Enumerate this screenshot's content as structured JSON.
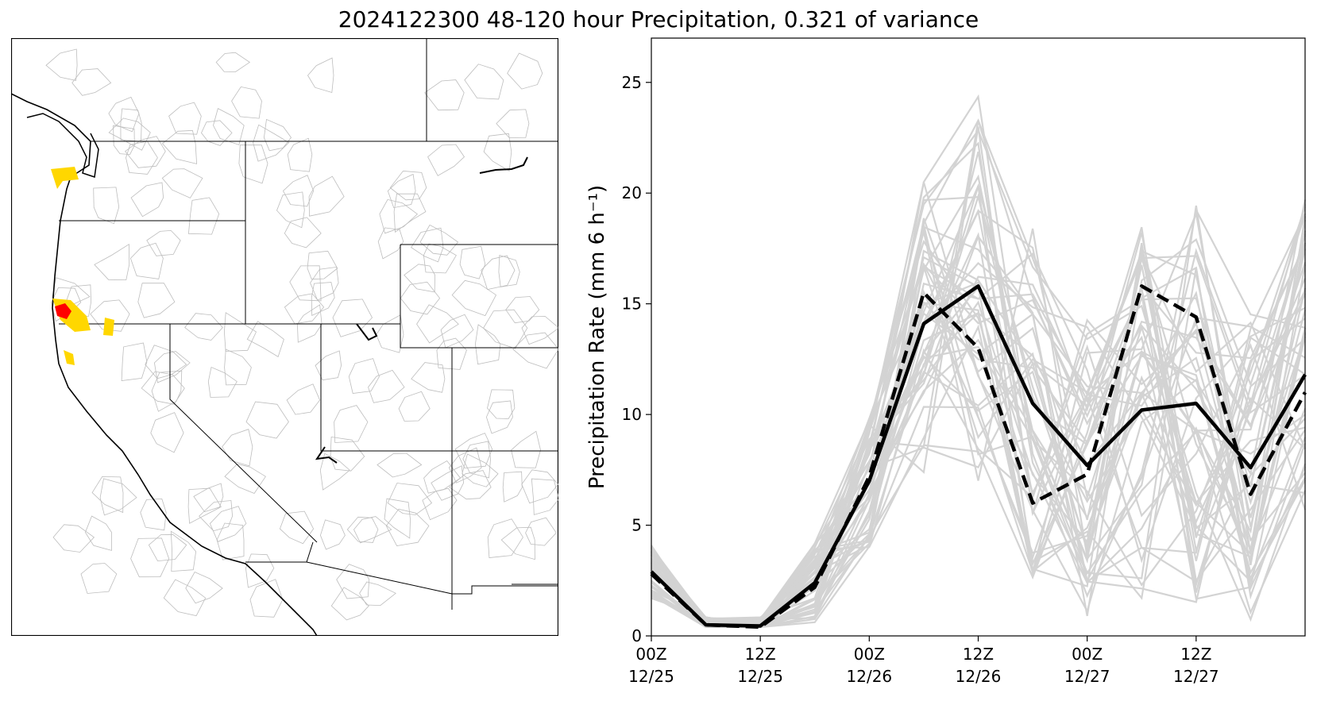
{
  "title": "2024122300 48-120 hour Precipitation, 0.321 of variance",
  "map": {
    "colors": {
      "border": "#000000",
      "basin": "#bdbdbd",
      "highlight_yellow": "#ffd700",
      "highlight_red": "#ff0000"
    }
  },
  "chart_data": {
    "type": "line",
    "title": "2024122300 48-120 hour Precipitation, 0.321 of variance",
    "xlabel": "",
    "ylabel": "Precipitation Rate (mm 6 h⁻¹)",
    "ylim": [
      0,
      27
    ],
    "xlim": [
      0,
      18
    ],
    "yticks": [
      "0",
      "5",
      "10",
      "15",
      "20",
      "25"
    ],
    "xticks": [
      {
        "x": 0,
        "line1": "00Z",
        "line2": "12/25"
      },
      {
        "x": 3,
        "line1": "12Z",
        "line2": "12/25"
      },
      {
        "x": 6,
        "line1": "00Z",
        "line2": "12/26"
      },
      {
        "x": 9,
        "line1": "12Z",
        "line2": "12/26"
      },
      {
        "x": 12,
        "line1": "00Z",
        "line2": "12/27"
      },
      {
        "x": 15,
        "line1": "12Z",
        "line2": "12/27"
      }
    ],
    "grid": false,
    "x": [
      0,
      1.5,
      3,
      4.5,
      6,
      7.5,
      9,
      10.5,
      12,
      13.5,
      15,
      16.5,
      18
    ],
    "series": [
      {
        "style": "solid-black",
        "values": [
          2.9,
          0.5,
          0.45,
          2.4,
          7.0,
          14.1,
          15.8,
          10.5,
          7.7,
          10.2,
          10.5,
          7.6,
          11.8
        ]
      },
      {
        "style": "dashed-black",
        "values": [
          2.8,
          0.5,
          0.4,
          2.2,
          7.2,
          15.5,
          13.0,
          6.0,
          7.3,
          15.8,
          14.4,
          6.4,
          11.0
        ]
      }
    ],
    "ensemble_color": "#d3d3d3",
    "ensemble_count": 50
  }
}
